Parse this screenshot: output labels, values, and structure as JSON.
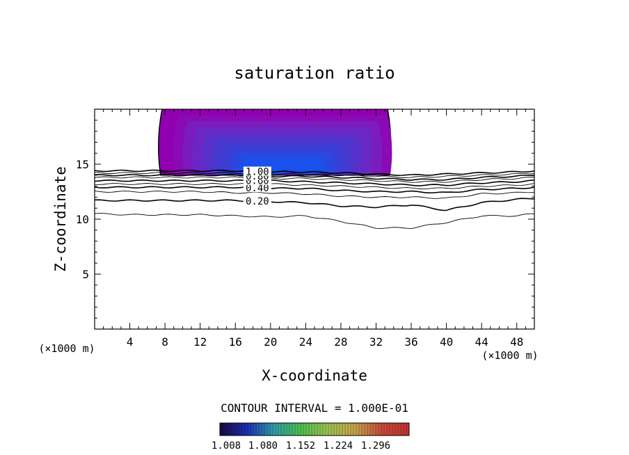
{
  "chart_data": {
    "type": "contour",
    "title": "saturation ratio",
    "xlabel": "X-coordinate",
    "ylabel": "Z-coordinate",
    "x_unit_left": "(×1000 m)",
    "x_unit_right": "(×1000 m)",
    "xlim": [
      0,
      50
    ],
    "ylim": [
      0,
      20
    ],
    "x_ticks": [
      4,
      8,
      12,
      16,
      20,
      24,
      28,
      32,
      36,
      40,
      44,
      48
    ],
    "y_ticks": [
      5,
      10,
      15
    ],
    "x_tick_labels": [
      "4",
      "8",
      "12",
      "16",
      "20",
      "24",
      "28",
      "32",
      "36",
      "40",
      "44",
      "48"
    ],
    "y_tick_labels": [
      "5",
      "10",
      "15"
    ],
    "contour_interval_text": "CONTOUR INTERVAL = 1.000E-01",
    "colorbar_ticks": [
      "1.008",
      "1.080",
      "1.152",
      "1.224",
      "1.296"
    ],
    "colorbar_colors": [
      "#1a0840",
      "#1c2fb4",
      "#2f9ea6",
      "#4fbe4f",
      "#9ec24f",
      "#c7a24a",
      "#c84a3a",
      "#c1322f"
    ],
    "shaded_region": {
      "x_range": [
        7.5,
        33.5
      ],
      "z_range": [
        14.0,
        20.0
      ],
      "colors": [
        "#9000b0",
        "#8a0ab4",
        "#7b1cbf",
        "#6c26c4",
        "#5a2ec8",
        "#4838d0",
        "#3a3ed4",
        "#2a48df",
        "#1a50ec"
      ]
    },
    "contours": [
      {
        "x": [
          0,
          4,
          8,
          12,
          16,
          20,
          24,
          28,
          32,
          36,
          40,
          44,
          48,
          50
        ],
        "z": [
          10.5,
          10.4,
          10.4,
          10.4,
          10.3,
          10.2,
          10.3,
          9.8,
          9.2,
          9.2,
          9.7,
          10.3,
          10.3,
          10.5
        ]
      },
      {
        "label": "0.20",
        "x": [
          0,
          4,
          8,
          12,
          16,
          20,
          24,
          28,
          32,
          36,
          40,
          44,
          48,
          50
        ],
        "z": [
          11.7,
          11.7,
          11.7,
          11.7,
          11.7,
          11.6,
          11.5,
          11.2,
          11.1,
          11.3,
          10.8,
          11.5,
          11.8,
          11.9
        ]
      },
      {
        "x": [
          0,
          4,
          8,
          12,
          16,
          20,
          24,
          28,
          32,
          36,
          40,
          44,
          48,
          50
        ],
        "z": [
          12.5,
          12.5,
          12.5,
          12.5,
          12.4,
          12.4,
          12.3,
          12.1,
          12.0,
          12.0,
          11.9,
          12.3,
          12.4,
          12.5
        ]
      },
      {
        "label": "0.40",
        "x": [
          0,
          4,
          8,
          12,
          16,
          20,
          24,
          28,
          32,
          36,
          40,
          44,
          48,
          50
        ],
        "z": [
          12.9,
          12.9,
          12.9,
          12.9,
          12.9,
          12.8,
          12.8,
          12.6,
          12.5,
          12.5,
          12.4,
          12.7,
          12.8,
          12.9
        ]
      },
      {
        "x": [
          0,
          4,
          8,
          12,
          16,
          20,
          24,
          28,
          32,
          36,
          40,
          44,
          48,
          50
        ],
        "z": [
          13.2,
          13.2,
          13.2,
          13.2,
          13.2,
          13.2,
          13.1,
          13.0,
          12.9,
          12.8,
          12.8,
          13.0,
          13.1,
          13.2
        ]
      },
      {
        "label": "0.60",
        "x": [
          0,
          4,
          8,
          12,
          16,
          20,
          24,
          28,
          32,
          36,
          40,
          44,
          48,
          50
        ],
        "z": [
          13.5,
          13.5,
          13.5,
          13.5,
          13.5,
          13.5,
          13.4,
          13.3,
          13.2,
          13.1,
          13.1,
          13.3,
          13.4,
          13.5
        ]
      },
      {
        "x": [
          0,
          4,
          8,
          12,
          16,
          20,
          24,
          28,
          32,
          36,
          40,
          44,
          48,
          50
        ],
        "z": [
          13.8,
          13.8,
          13.8,
          13.8,
          13.8,
          13.7,
          13.7,
          13.6,
          13.5,
          13.4,
          13.4,
          13.6,
          13.7,
          13.8
        ]
      },
      {
        "label": "0.80",
        "x": [
          0,
          4,
          8,
          12,
          16,
          20,
          24,
          28,
          32,
          36,
          40,
          44,
          48,
          50
        ],
        "z": [
          14.0,
          14.0,
          14.0,
          14.0,
          14.0,
          13.9,
          13.9,
          13.8,
          13.7,
          13.6,
          13.6,
          13.8,
          13.9,
          14.0
        ]
      },
      {
        "x": [
          0,
          4,
          8,
          12,
          16,
          20,
          24,
          28,
          32,
          36,
          40,
          44,
          48,
          50
        ],
        "z": [
          14.2,
          14.2,
          14.2,
          14.2,
          14.2,
          14.1,
          14.1,
          14.0,
          13.9,
          13.8,
          13.9,
          14.0,
          14.1,
          14.2
        ]
      },
      {
        "label": "1.00",
        "x": [
          0,
          4,
          8,
          12,
          16,
          20,
          24,
          28,
          32,
          36,
          40,
          44,
          48,
          50
        ],
        "z": [
          14.4,
          14.4,
          14.4,
          14.4,
          14.4,
          14.3,
          14.3,
          14.2,
          14.1,
          14.0,
          14.1,
          14.2,
          14.3,
          14.4
        ]
      }
    ]
  }
}
